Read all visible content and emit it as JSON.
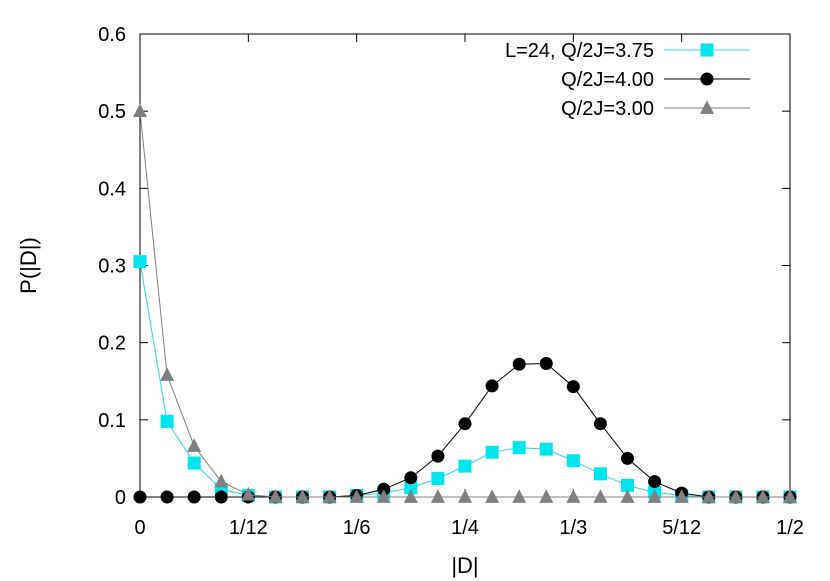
{
  "chart_data": {
    "type": "line",
    "xlabel": "|D|",
    "ylabel": "P(|D|)",
    "xlim": [
      0,
      0.5
    ],
    "ylim": [
      0,
      0.6
    ],
    "grid": false,
    "legend_position": "top-right",
    "x_ticks": [
      {
        "value": 0,
        "label": "0"
      },
      {
        "value": 0.083333,
        "label": "1/12"
      },
      {
        "value": 0.166667,
        "label": "1/6"
      },
      {
        "value": 0.25,
        "label": "1/4"
      },
      {
        "value": 0.333333,
        "label": "1/3"
      },
      {
        "value": 0.416667,
        "label": "5/12"
      },
      {
        "value": 0.5,
        "label": "1/2"
      }
    ],
    "y_ticks": [
      {
        "value": 0,
        "label": "0"
      },
      {
        "value": 0.1,
        "label": "0.1"
      },
      {
        "value": 0.2,
        "label": "0.2"
      },
      {
        "value": 0.3,
        "label": "0.3"
      },
      {
        "value": 0.4,
        "label": "0.4"
      },
      {
        "value": 0.5,
        "label": "0.5"
      },
      {
        "value": 0.6,
        "label": "0.6"
      }
    ],
    "x": [
      0,
      0.020833,
      0.041667,
      0.0625,
      0.083333,
      0.104167,
      0.125,
      0.145833,
      0.166667,
      0.1875,
      0.208333,
      0.229167,
      0.25,
      0.270833,
      0.291667,
      0.3125,
      0.333333,
      0.354167,
      0.375,
      0.395833,
      0.416667,
      0.4375,
      0.458333,
      0.479167,
      0.5
    ],
    "series": [
      {
        "name": "L=24, Q/2J=3.75",
        "color": "#00e5ee",
        "line_color": "#33d6e0",
        "marker": "square",
        "values": [
          0.305,
          0.098,
          0.044,
          0.01,
          0.002,
          0.0,
          0.0,
          0.0,
          0.002,
          0.005,
          0.012,
          0.024,
          0.04,
          0.058,
          0.064,
          0.062,
          0.047,
          0.03,
          0.015,
          0.006,
          0.002,
          0.0,
          0.0,
          0.0,
          0.0
        ]
      },
      {
        "name": "Q/2J=4.00",
        "color": "#000000",
        "line_color": "#000000",
        "marker": "circle",
        "values": [
          0.0,
          0.0,
          0.0,
          0.0,
          0.0,
          0.0,
          0.0,
          0.0,
          0.002,
          0.01,
          0.025,
          0.053,
          0.095,
          0.144,
          0.172,
          0.173,
          0.143,
          0.095,
          0.05,
          0.02,
          0.005,
          0.0,
          0.0,
          0.0,
          0.0
        ]
      },
      {
        "name": "Q/2J=3.00",
        "color": "#808080",
        "line_color": "#808080",
        "marker": "triangle",
        "values": [
          0.5,
          0.158,
          0.066,
          0.02,
          0.003,
          0.0,
          0.0,
          0.0,
          0.0,
          0.0,
          0.0,
          0.0,
          0.0,
          0.0,
          0.0,
          0.0,
          0.0,
          0.0,
          0.0,
          0.0,
          0.0,
          0.0,
          0.0,
          0.0,
          0.0
        ]
      }
    ]
  }
}
